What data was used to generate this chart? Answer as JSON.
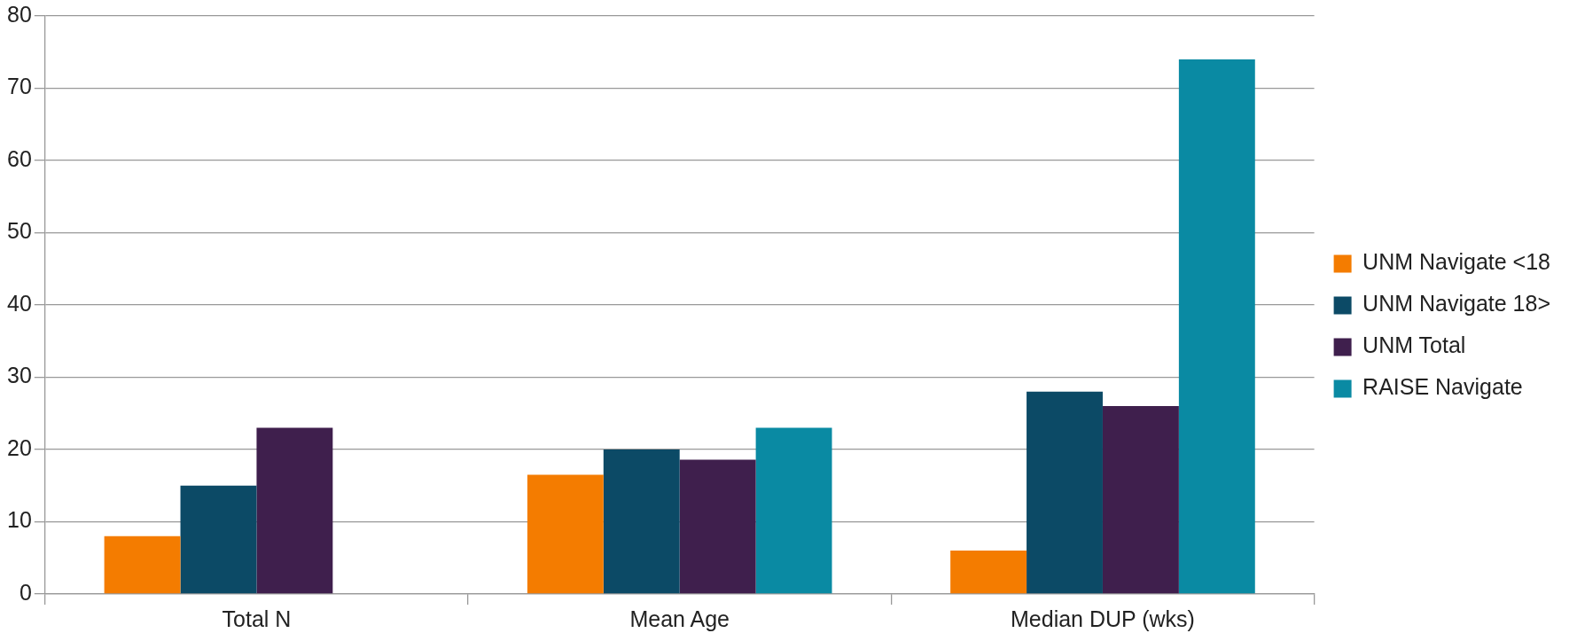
{
  "chart_data": {
    "type": "bar",
    "categories": [
      "Total N",
      "Mean Age",
      "Median DUP (wks)"
    ],
    "series": [
      {
        "name": "UNM Navigate <18",
        "color": "#f47c00",
        "values": [
          8,
          16.5,
          6
        ]
      },
      {
        "name": "UNM Navigate 18>",
        "color": "#0c4a66",
        "values": [
          15,
          20,
          28
        ]
      },
      {
        "name": "UNM Total",
        "color": "#3f1f4d",
        "values": [
          23,
          18.6,
          26
        ]
      },
      {
        "name": "RAISE Navigate",
        "color": "#0a8aa3",
        "values": [
          null,
          23,
          74
        ]
      }
    ],
    "ylim": [
      0,
      80
    ],
    "yticks": [
      0,
      10,
      20,
      30,
      40,
      50,
      60,
      70,
      80
    ],
    "grid": "y",
    "legend": "right"
  }
}
